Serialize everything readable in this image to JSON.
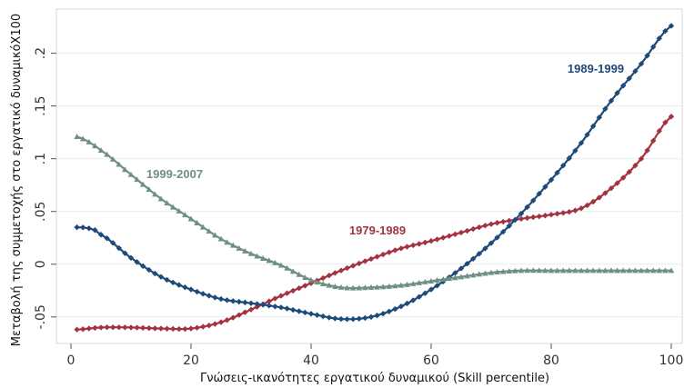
{
  "chart_data": {
    "type": "line",
    "xlabel": "Γνώσεις-ικανότητες εργατικού δυναμικού (Skill percentile)",
    "ylabel": "Μεταβολή της συμμετοχής στο εργατικό δυναμικόΧ100",
    "xlim": [
      0,
      100
    ],
    "ylim": [
      -0.07,
      0.235
    ],
    "x_ticks": [
      "0",
      "20",
      "40",
      "60",
      "80",
      "100"
    ],
    "y_ticks": [
      "-.05",
      "0",
      ".05",
      ".1",
      ".15",
      ".2"
    ],
    "grid": true,
    "series": [
      {
        "name": "1979-1989",
        "color": "#a3333f",
        "marker": "diamond",
        "x": [
          1,
          5,
          10,
          15,
          20,
          25,
          30,
          35,
          40,
          45,
          50,
          55,
          60,
          65,
          70,
          75,
          80,
          85,
          90,
          95,
          100
        ],
        "y": [
          -0.062,
          -0.06,
          -0.06,
          -0.061,
          -0.061,
          -0.055,
          -0.043,
          -0.03,
          -0.018,
          -0.006,
          0.005,
          0.015,
          0.022,
          0.03,
          0.038,
          0.043,
          0.047,
          0.053,
          0.072,
          0.1,
          0.14
        ]
      },
      {
        "name": "1989-1999",
        "color": "#1e4a7a",
        "marker": "diamond",
        "x": [
          1,
          3,
          5,
          10,
          15,
          20,
          25,
          30,
          35,
          40,
          45,
          50,
          55,
          60,
          65,
          70,
          75,
          80,
          85,
          90,
          95,
          100
        ],
        "y": [
          0.035,
          0.034,
          0.028,
          0.006,
          -0.012,
          -0.024,
          -0.033,
          -0.037,
          -0.041,
          -0.047,
          -0.052,
          -0.05,
          -0.04,
          -0.024,
          -0.004,
          0.02,
          0.048,
          0.08,
          0.115,
          0.155,
          0.19,
          0.226
        ]
      },
      {
        "name": "1999-2007",
        "color": "#6f8f84",
        "marker": "triangle",
        "x": [
          1,
          5,
          10,
          15,
          20,
          25,
          30,
          35,
          40,
          45,
          50,
          55,
          60,
          65,
          70,
          75,
          80,
          85,
          90,
          95,
          100
        ],
        "y": [
          0.121,
          0.108,
          0.085,
          0.062,
          0.043,
          0.024,
          0.01,
          -0.001,
          -0.015,
          -0.022,
          -0.022,
          -0.02,
          -0.016,
          -0.012,
          -0.008,
          -0.006,
          -0.006,
          -0.006,
          -0.006,
          -0.006,
          -0.006
        ]
      }
    ],
    "annotations": [
      "1979-1989",
      "1989-1999",
      "1999-2007"
    ]
  }
}
